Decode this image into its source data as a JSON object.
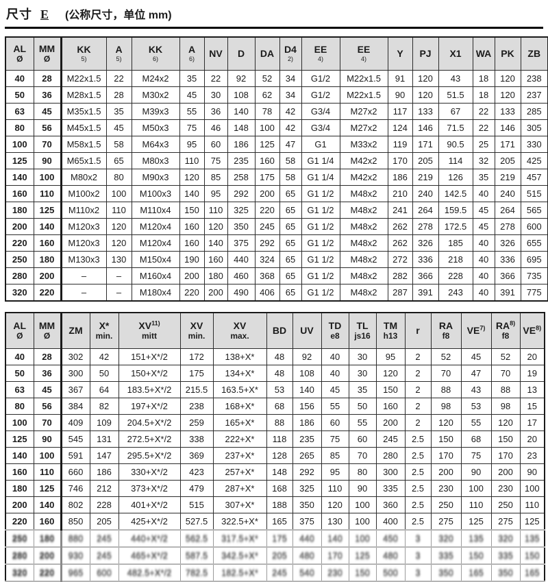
{
  "title": {
    "label": "尺寸",
    "code": "E",
    "note": "(公称尺寸，单位 mm)"
  },
  "table1": {
    "columns": [
      {
        "top": "AL",
        "bot": "Ø"
      },
      {
        "top": "MM",
        "bot": "Ø"
      },
      {
        "top": "KK",
        "bot": "5)",
        "fn": true
      },
      {
        "top": "A",
        "bot": "5)",
        "fn": true
      },
      {
        "top": "KK",
        "bot": "6)",
        "fn": true
      },
      {
        "top": "A",
        "bot": "6)",
        "fn": true
      },
      {
        "top": "NV"
      },
      {
        "top": "D"
      },
      {
        "top": "DA"
      },
      {
        "top": "D4",
        "bot": "2)",
        "fn": true
      },
      {
        "top": "EE",
        "bot": "4)",
        "fn": true
      },
      {
        "top": "EE",
        "bot": "4)",
        "fn": true
      },
      {
        "top": "Y"
      },
      {
        "top": "PJ"
      },
      {
        "top": "X1"
      },
      {
        "top": "WA"
      },
      {
        "top": "PK"
      },
      {
        "top": "ZB"
      }
    ],
    "rows": [
      [
        "40",
        "28",
        "M22x1.5",
        "22",
        "M24x2",
        "35",
        "22",
        "92",
        "52",
        "34",
        "G1/2",
        "M22x1.5",
        "91",
        "120",
        "43",
        "18",
        "120",
        "238"
      ],
      [
        "50",
        "36",
        "M28x1.5",
        "28",
        "M30x2",
        "45",
        "30",
        "108",
        "62",
        "34",
        "G1/2",
        "M22x1.5",
        "90",
        "120",
        "51.5",
        "18",
        "120",
        "237"
      ],
      [
        "63",
        "45",
        "M35x1.5",
        "35",
        "M39x3",
        "55",
        "36",
        "140",
        "78",
        "42",
        "G3/4",
        "M27x2",
        "117",
        "133",
        "67",
        "22",
        "133",
        "285"
      ],
      [
        "80",
        "56",
        "M45x1.5",
        "45",
        "M50x3",
        "75",
        "46",
        "148",
        "100",
        "42",
        "G3/4",
        "M27x2",
        "124",
        "146",
        "71.5",
        "22",
        "146",
        "305"
      ],
      [
        "100",
        "70",
        "M58x1.5",
        "58",
        "M64x3",
        "95",
        "60",
        "186",
        "125",
        "47",
        "G1",
        "M33x2",
        "119",
        "171",
        "90.5",
        "25",
        "171",
        "330"
      ],
      [
        "125",
        "90",
        "M65x1.5",
        "65",
        "M80x3",
        "110",
        "75",
        "235",
        "160",
        "58",
        "G1 1/4",
        "M42x2",
        "170",
        "205",
        "114",
        "32",
        "205",
        "425"
      ],
      [
        "140",
        "100",
        "M80x2",
        "80",
        "M90x3",
        "120",
        "85",
        "258",
        "175",
        "58",
        "G1 1/4",
        "M42x2",
        "186",
        "219",
        "126",
        "35",
        "219",
        "457"
      ],
      [
        "160",
        "110",
        "M100x2",
        "100",
        "M100x3",
        "140",
        "95",
        "292",
        "200",
        "65",
        "G1 1/2",
        "M48x2",
        "210",
        "240",
        "142.5",
        "40",
        "240",
        "515"
      ],
      [
        "180",
        "125",
        "M110x2",
        "110",
        "M110x4",
        "150",
        "110",
        "325",
        "220",
        "65",
        "G1 1/2",
        "M48x2",
        "241",
        "264",
        "159.5",
        "45",
        "264",
        "565"
      ],
      [
        "200",
        "140",
        "M120x3",
        "120",
        "M120x4",
        "160",
        "120",
        "350",
        "245",
        "65",
        "G1 1/2",
        "M48x2",
        "262",
        "278",
        "172.5",
        "45",
        "278",
        "600"
      ],
      [
        "220",
        "160",
        "M120x3",
        "120",
        "M120x4",
        "160",
        "140",
        "375",
        "292",
        "65",
        "G1 1/2",
        "M48x2",
        "262",
        "326",
        "185",
        "40",
        "326",
        "655"
      ],
      [
        "250",
        "180",
        "M130x3",
        "130",
        "M150x4",
        "190",
        "160",
        "440",
        "324",
        "65",
        "G1 1/2",
        "M48x2",
        "272",
        "336",
        "218",
        "40",
        "336",
        "695"
      ],
      [
        "280",
        "200",
        "–",
        "–",
        "M160x4",
        "200",
        "180",
        "460",
        "368",
        "65",
        "G1 1/2",
        "M48x2",
        "282",
        "366",
        "228",
        "40",
        "366",
        "735"
      ],
      [
        "320",
        "220",
        "–",
        "–",
        "M180x4",
        "220",
        "200",
        "490",
        "406",
        "65",
        "G1 1/2",
        "M48x2",
        "287",
        "391",
        "243",
        "40",
        "391",
        "775"
      ]
    ],
    "degraded_rows": []
  },
  "table2": {
    "columns": [
      {
        "top": "AL",
        "bot": "Ø"
      },
      {
        "top": "MM",
        "bot": "Ø"
      },
      {
        "top": "ZM"
      },
      {
        "top": "X*",
        "bot": "min."
      },
      {
        "top": "XV",
        "sup": "11)",
        "bot": "mitt"
      },
      {
        "top": "XV",
        "bot": "min."
      },
      {
        "top": "XV",
        "bot": "max."
      },
      {
        "top": "BD"
      },
      {
        "top": "UV"
      },
      {
        "top": "TD",
        "bot": "e8"
      },
      {
        "top": "TL",
        "bot": "js16"
      },
      {
        "top": "TM",
        "bot": "h13"
      },
      {
        "top": "r"
      },
      {
        "top": "RA",
        "bot": "f8"
      },
      {
        "top": "VE",
        "sup": "7)"
      },
      {
        "top": "RA",
        "sup": "8)",
        "bot": "f8"
      },
      {
        "top": "VE",
        "sup": "8)"
      }
    ],
    "rows": [
      [
        "40",
        "28",
        "302",
        "42",
        "151+X*/2",
        "172",
        "138+X*",
        "48",
        "92",
        "40",
        "30",
        "95",
        "2",
        "52",
        "45",
        "52",
        "20"
      ],
      [
        "50",
        "36",
        "300",
        "50",
        "150+X*/2",
        "175",
        "134+X*",
        "48",
        "108",
        "40",
        "30",
        "120",
        "2",
        "70",
        "47",
        "70",
        "19"
      ],
      [
        "63",
        "45",
        "367",
        "64",
        "183.5+X*/2",
        "215.5",
        "163.5+X*",
        "53",
        "140",
        "45",
        "35",
        "150",
        "2",
        "88",
        "43",
        "88",
        "13"
      ],
      [
        "80",
        "56",
        "384",
        "82",
        "197+X*/2",
        "238",
        "168+X*",
        "68",
        "156",
        "55",
        "50",
        "160",
        "2",
        "98",
        "53",
        "98",
        "15"
      ],
      [
        "100",
        "70",
        "409",
        "109",
        "204.5+X*/2",
        "259",
        "165+X*",
        "88",
        "186",
        "60",
        "55",
        "200",
        "2",
        "120",
        "55",
        "120",
        "17"
      ],
      [
        "125",
        "90",
        "545",
        "131",
        "272.5+X*/2",
        "338",
        "222+X*",
        "118",
        "235",
        "75",
        "60",
        "245",
        "2.5",
        "150",
        "68",
        "150",
        "20"
      ],
      [
        "140",
        "100",
        "591",
        "147",
        "295.5+X*/2",
        "369",
        "237+X*",
        "128",
        "265",
        "85",
        "70",
        "280",
        "2.5",
        "170",
        "75",
        "170",
        "23"
      ],
      [
        "160",
        "110",
        "660",
        "186",
        "330+X*/2",
        "423",
        "257+X*",
        "148",
        "292",
        "95",
        "80",
        "300",
        "2.5",
        "200",
        "90",
        "200",
        "90"
      ],
      [
        "180",
        "125",
        "746",
        "212",
        "373+X*/2",
        "479",
        "287+X*",
        "168",
        "325",
        "110",
        "90",
        "335",
        "2.5",
        "230",
        "100",
        "230",
        "100"
      ],
      [
        "200",
        "140",
        "802",
        "228",
        "401+X*/2",
        "515",
        "307+X*",
        "188",
        "350",
        "120",
        "100",
        "360",
        "2.5",
        "250",
        "110",
        "250",
        "110"
      ],
      [
        "220",
        "160",
        "850",
        "205",
        "425+X*/2",
        "527.5",
        "322.5+X*",
        "165",
        "375",
        "130",
        "100",
        "400",
        "2.5",
        "275",
        "125",
        "275",
        "125"
      ],
      [
        "250",
        "180",
        "880",
        "245",
        "440+X*/2",
        "562.5",
        "317.5+X*",
        "175",
        "440",
        "140",
        "100",
        "450",
        "3",
        "320",
        "135",
        "320",
        "135"
      ],
      [
        "280",
        "200",
        "930",
        "245",
        "465+X*/2",
        "587.5",
        "342.5+X*",
        "205",
        "480",
        "170",
        "125",
        "480",
        "3",
        "335",
        "150",
        "335",
        "150"
      ],
      [
        "320",
        "220",
        "965",
        "600",
        "482.5+X*/2",
        "782.5",
        "182.5+X*",
        "245",
        "540",
        "230",
        "150",
        "500",
        "3",
        "350",
        "165",
        "350",
        "165"
      ]
    ],
    "degraded_rows": [
      11,
      12,
      13
    ]
  }
}
